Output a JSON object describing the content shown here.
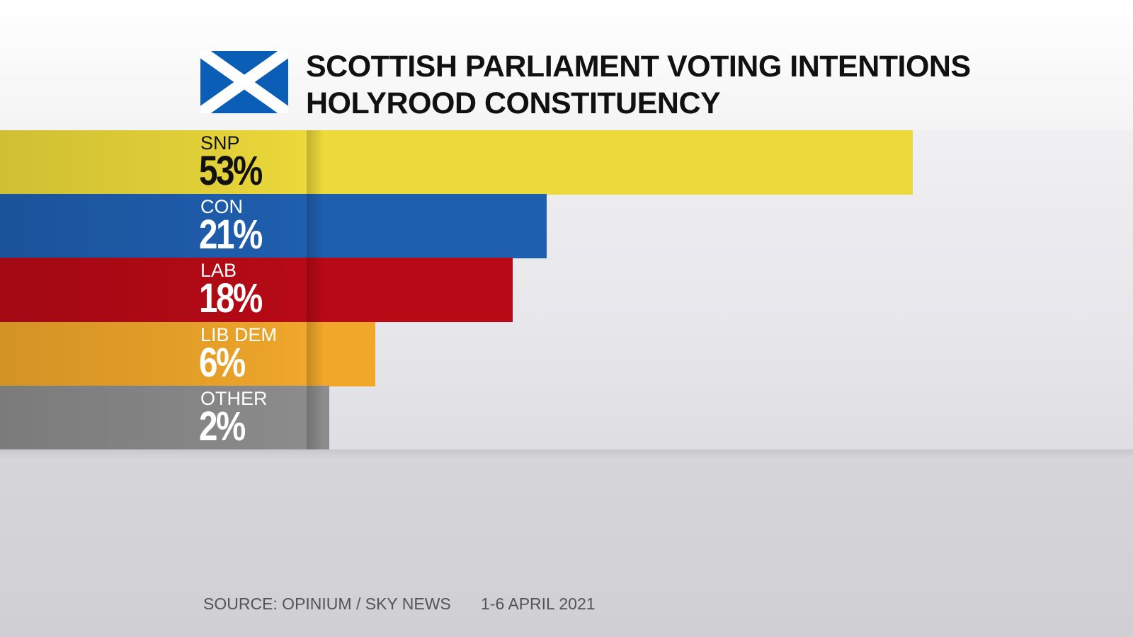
{
  "chart_data": {
    "type": "bar",
    "orientation": "horizontal",
    "title": "SCOTTISH PARLIAMENT VOTING INTENTIONS",
    "subtitle": "HOLYROOD CONSTITUENCY",
    "categories": [
      "SNP",
      "CON",
      "LAB",
      "LIB DEM",
      "OTHER"
    ],
    "values": [
      53,
      21,
      18,
      6,
      2
    ],
    "value_labels": [
      "53%",
      "21%",
      "18%",
      "6%",
      "2%"
    ],
    "colors": [
      "#ecd93a",
      "#1f5fb0",
      "#b80a16",
      "#f0a72a",
      "#8c8c8c"
    ],
    "label_colors": [
      "#111111",
      "#ffffff",
      "#ffffff",
      "#ffffff",
      "#ffffff"
    ],
    "unit": "%",
    "grid": false,
    "source": "SOURCE: OPINIUM / SKY NEWS",
    "date": "1-6 APRIL 2021",
    "icon": "scotland-flag-icon"
  }
}
